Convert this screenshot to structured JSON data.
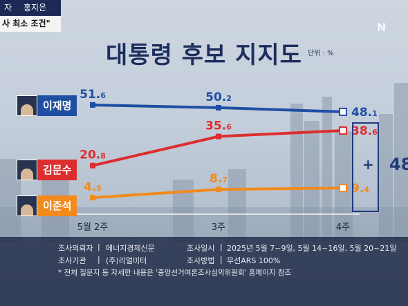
{
  "topbar": {
    "left_fragment": "자",
    "name": "홍지은",
    "subtitle": "사 최소 조건\""
  },
  "logo": "N",
  "title": "대통령 후보 지지도",
  "unit": "단위 : %",
  "candidates": [
    {
      "name": "이재명",
      "color": "#1e4fa3"
    },
    {
      "name": "김문수",
      "color": "#dd2e2e"
    },
    {
      "name": "이준석",
      "color": "#f28a1c"
    }
  ],
  "chart_data": {
    "type": "line",
    "title": "대통령 후보 지지도",
    "unit": "단위 : %",
    "categories": [
      "5월 2주",
      "3주",
      "4주"
    ],
    "series": [
      {
        "name": "이재명",
        "color": "#1e4fa3",
        "values": [
          51.6,
          50.2,
          48.1
        ],
        "labels": [
          [
            "51.",
            "6"
          ],
          [
            "50.",
            "2"
          ],
          [
            "48.",
            "1"
          ]
        ]
      },
      {
        "name": "김문수",
        "color": "#dd2e2e",
        "values": [
          20.8,
          35.6,
          38.6
        ],
        "labels": [
          [
            "20.",
            "8"
          ],
          [
            "35.",
            "6"
          ],
          [
            "38.",
            "6"
          ]
        ]
      },
      {
        "name": "이준석",
        "color": "#f28a1c",
        "values": [
          4.5,
          8.7,
          9.4
        ],
        "labels": [
          [
            "4.",
            "5"
          ],
          [
            "8.",
            "7"
          ],
          [
            "9.",
            "4"
          ]
        ]
      }
    ],
    "annotation": {
      "plus": "+",
      "sum": "48"
    }
  },
  "footer": {
    "commissioner_label": "조사의뢰자",
    "commissioner": "에너지경제신문",
    "period_label": "조사일시",
    "period": "2025년 5월 7~9일, 5월 14~16일, 5월 20~21일",
    "agency_label": "조사기관",
    "agency": "(주)리얼미터",
    "method_label": "조사방법",
    "method": "무선ARS 100%",
    "note": "* 전체 질문지 등 자세한 내용은 '중앙선거여론조사심의위원회' 홈페이지 참조"
  }
}
